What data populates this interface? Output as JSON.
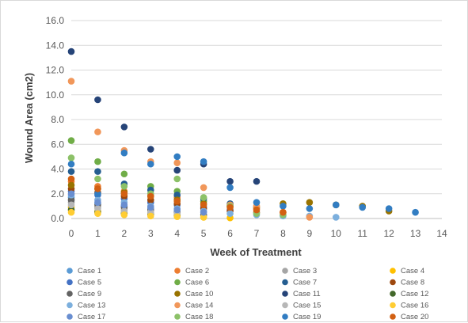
{
  "chart_data": {
    "type": "scatter",
    "xlabel": "Week of Treatment",
    "ylabel": "Wound Area (cm2)",
    "xlim": [
      0,
      14
    ],
    "ylim": [
      0,
      16
    ],
    "x_ticks": [
      0,
      1,
      2,
      3,
      4,
      5,
      6,
      7,
      8,
      9,
      10,
      11,
      12,
      13,
      14
    ],
    "y_ticks": [
      "0.0",
      "2.0",
      "4.0",
      "6.0",
      "8.0",
      "10.0",
      "12.0",
      "14.0",
      "16.0"
    ],
    "grid": "horizontal",
    "legend_position": "bottom",
    "series": [
      {
        "name": "Case 1",
        "color": "#5b9bd5",
        "points": [
          [
            0,
            1.7
          ],
          [
            1,
            1.2
          ],
          [
            2,
            1.0
          ],
          [
            3,
            0.8
          ],
          [
            4,
            0.5
          ],
          [
            5,
            0.3
          ]
        ]
      },
      {
        "name": "Case 2",
        "color": "#ed7d31",
        "points": [
          [
            0,
            3.0
          ],
          [
            1,
            2.6
          ],
          [
            2,
            2.2
          ],
          [
            3,
            2.0
          ],
          [
            4,
            1.7
          ],
          [
            5,
            1.4
          ],
          [
            6,
            1.1
          ],
          [
            7,
            0.8
          ]
        ]
      },
      {
        "name": "Case 3",
        "color": "#a5a5a5",
        "points": [
          [
            0,
            1.3
          ],
          [
            1,
            0.9
          ],
          [
            2,
            0.7
          ],
          [
            3,
            0.5
          ],
          [
            4,
            0.4
          ]
        ]
      },
      {
        "name": "Case 4",
        "color": "#ffc000",
        "points": [
          [
            0,
            0.9
          ],
          [
            1,
            0.6
          ],
          [
            2,
            0.5
          ],
          [
            3,
            0.4
          ],
          [
            4,
            0.3
          ],
          [
            5,
            0.1
          ],
          [
            6,
            0.05
          ]
        ]
      },
      {
        "name": "Case 5",
        "color": "#4472c4",
        "points": [
          [
            0,
            2.2
          ],
          [
            1,
            1.9
          ],
          [
            2,
            1.6
          ],
          [
            3,
            1.3
          ],
          [
            4,
            1.1
          ],
          [
            5,
            0.9
          ],
          [
            6,
            0.7
          ]
        ]
      },
      {
        "name": "Case 6",
        "color": "#70ad47",
        "points": [
          [
            0,
            6.3
          ],
          [
            1,
            4.6
          ],
          [
            2,
            3.6
          ],
          [
            3,
            2.6
          ],
          [
            4,
            2.2
          ],
          [
            5,
            1.4
          ]
        ]
      },
      {
        "name": "Case 7",
        "color": "#255e91",
        "points": [
          [
            0,
            3.8
          ],
          [
            1,
            3.8
          ],
          [
            2,
            2.8
          ],
          [
            3,
            2.3
          ],
          [
            4,
            1.9
          ],
          [
            5,
            1.6
          ],
          [
            6,
            1.2
          ]
        ]
      },
      {
        "name": "Case 8",
        "color": "#9e480e",
        "points": [
          [
            0,
            2.4
          ],
          [
            1,
            2.1
          ],
          [
            2,
            1.8
          ],
          [
            3,
            1.5
          ],
          [
            4,
            1.2
          ],
          [
            5,
            0.8
          ],
          [
            6,
            0.6
          ],
          [
            7,
            0.5
          ]
        ]
      },
      {
        "name": "Case 9",
        "color": "#636363",
        "points": [
          [
            0,
            1.5
          ],
          [
            1,
            1.1
          ],
          [
            2,
            0.9
          ],
          [
            3,
            0.7
          ],
          [
            4,
            0.5
          ],
          [
            5,
            0.3
          ]
        ]
      },
      {
        "name": "Case 10",
        "color": "#997300",
        "points": [
          [
            0,
            2.7
          ],
          [
            1,
            2.4
          ],
          [
            2,
            2.1
          ],
          [
            3,
            1.8
          ],
          [
            4,
            1.5
          ],
          [
            5,
            1.2
          ],
          [
            6,
            1.0
          ],
          [
            7,
            0.9
          ],
          [
            8,
            1.2
          ],
          [
            9,
            1.3
          ],
          [
            10,
            1.1
          ],
          [
            11,
            1.0
          ],
          [
            12,
            0.6
          ]
        ]
      },
      {
        "name": "Case 11",
        "color": "#264478",
        "points": [
          [
            0,
            13.5
          ],
          [
            1,
            9.6
          ],
          [
            2,
            7.4
          ],
          [
            3,
            5.6
          ],
          [
            4,
            3.9
          ],
          [
            5,
            4.4
          ],
          [
            6,
            3.0
          ],
          [
            7,
            3.0
          ]
        ]
      },
      {
        "name": "Case 12",
        "color": "#43682b",
        "points": [
          [
            0,
            0.7
          ],
          [
            1,
            0.5
          ],
          [
            2,
            0.4
          ],
          [
            3,
            0.3
          ],
          [
            4,
            0.2
          ]
        ]
      },
      {
        "name": "Case 13",
        "color": "#7cafdd",
        "points": [
          [
            0,
            1.9
          ],
          [
            1,
            1.5
          ],
          [
            2,
            1.3
          ],
          [
            3,
            1.0
          ],
          [
            4,
            0.8
          ],
          [
            5,
            0.6
          ],
          [
            6,
            0.4
          ],
          [
            7,
            0.3
          ],
          [
            8,
            0.2
          ],
          [
            9,
            0.2
          ],
          [
            10,
            0.1
          ]
        ]
      },
      {
        "name": "Case 14",
        "color": "#f1975a",
        "points": [
          [
            0,
            11.1
          ],
          [
            1,
            7.0
          ],
          [
            2,
            5.5
          ],
          [
            3,
            4.6
          ],
          [
            4,
            4.5
          ],
          [
            5,
            2.5
          ],
          [
            6,
            1.1
          ],
          [
            7,
            1.0
          ],
          [
            8,
            0.5
          ],
          [
            9,
            0.1
          ]
        ]
      },
      {
        "name": "Case 15",
        "color": "#b7b7b7",
        "points": [
          [
            0,
            1.1
          ],
          [
            1,
            0.8
          ],
          [
            2,
            0.6
          ],
          [
            3,
            0.5
          ],
          [
            4,
            0.4
          ]
        ]
      },
      {
        "name": "Case 16",
        "color": "#ffcd33",
        "points": [
          [
            0,
            0.5
          ],
          [
            1,
            0.4
          ],
          [
            2,
            0.3
          ],
          [
            3,
            0.2
          ],
          [
            4,
            0.15
          ],
          [
            5,
            0.1
          ]
        ]
      },
      {
        "name": "Case 17",
        "color": "#698ed0",
        "points": [
          [
            0,
            2.0
          ],
          [
            1,
            1.3
          ],
          [
            2,
            1.1
          ],
          [
            3,
            0.9
          ],
          [
            4,
            0.7
          ],
          [
            5,
            0.5
          ]
        ]
      },
      {
        "name": "Case 18",
        "color": "#8cc168",
        "points": [
          [
            0,
            4.9
          ],
          [
            1,
            3.2
          ],
          [
            2,
            2.6
          ],
          [
            3,
            2.0
          ],
          [
            4,
            3.2
          ],
          [
            5,
            1.7
          ],
          [
            6,
            1.0
          ],
          [
            7,
            0.4
          ],
          [
            8,
            0.3
          ]
        ]
      },
      {
        "name": "Case 19",
        "color": "#327dc2",
        "points": [
          [
            0,
            4.4
          ],
          [
            1,
            2.0
          ],
          [
            2,
            5.3
          ],
          [
            3,
            4.4
          ],
          [
            4,
            5.0
          ],
          [
            5,
            4.6
          ],
          [
            6,
            2.5
          ],
          [
            7,
            1.3
          ],
          [
            8,
            1.0
          ],
          [
            9,
            0.8
          ],
          [
            10,
            1.1
          ],
          [
            11,
            0.9
          ],
          [
            12,
            0.8
          ],
          [
            13,
            0.5
          ]
        ]
      },
      {
        "name": "Case 20",
        "color": "#d26012",
        "points": [
          [
            0,
            3.2
          ],
          [
            1,
            2.4
          ],
          [
            2,
            2.0
          ],
          [
            3,
            1.8
          ],
          [
            4,
            1.4
          ],
          [
            5,
            1.1
          ],
          [
            6,
            0.9
          ],
          [
            7,
            0.7
          ],
          [
            8,
            0.5
          ]
        ]
      }
    ]
  }
}
